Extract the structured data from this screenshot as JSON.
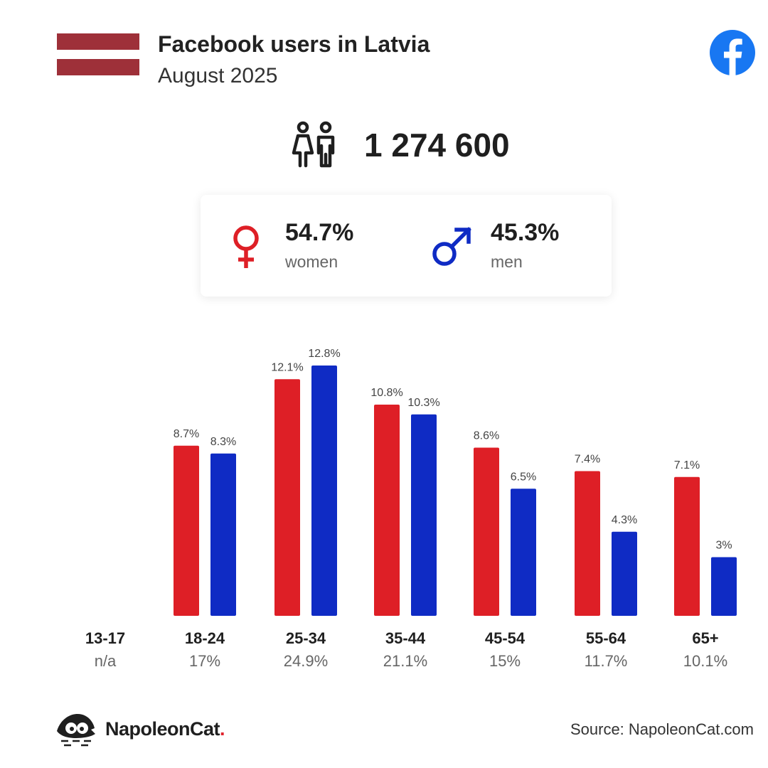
{
  "header": {
    "title": "Facebook users in Latvia",
    "subtitle": "August 2025",
    "flag_colors": [
      "#9e3039",
      "#ffffff",
      "#9e3039"
    ],
    "platform_icon": "facebook-icon",
    "platform_color": "#1877f2"
  },
  "total": {
    "icon": "people-icon",
    "value": "1 274 600"
  },
  "gender": {
    "women": {
      "icon": "female-symbol-icon",
      "percent": "54.7%",
      "label": "women",
      "color": "#de1f26"
    },
    "men": {
      "icon": "male-symbol-icon",
      "percent": "45.3%",
      "label": "men",
      "color": "#0f2bc4"
    }
  },
  "chart_data": {
    "type": "bar",
    "categories": [
      "13-17",
      "18-24",
      "25-34",
      "35-44",
      "45-54",
      "55-64",
      "65+"
    ],
    "category_shares": [
      "n/a",
      "17%",
      "24.9%",
      "21.1%",
      "15%",
      "11.7%",
      "10.1%"
    ],
    "series": [
      {
        "color": "#de1f26",
        "values": [
          null,
          8.7,
          12.1,
          10.8,
          8.6,
          7.4,
          7.1
        ],
        "labels": [
          "",
          "8.7%",
          "12.1%",
          "10.8%",
          "8.6%",
          "7.4%",
          "7.1%"
        ]
      },
      {
        "color": "#0f2bc4",
        "values": [
          null,
          8.3,
          12.8,
          10.3,
          6.5,
          4.3,
          3
        ],
        "labels": [
          "",
          "8.3%",
          "12.8%",
          "10.3%",
          "6.5%",
          "4.3%",
          "3%"
        ]
      }
    ],
    "ylim": [
      0,
      12.8
    ],
    "grid": false,
    "legend": "none"
  },
  "footer": {
    "brand": "NapoleonCat",
    "brand_suffix": ".",
    "brand_icon": "napoleoncat-logo-icon",
    "source": "Source: NapoleonCat.com"
  }
}
